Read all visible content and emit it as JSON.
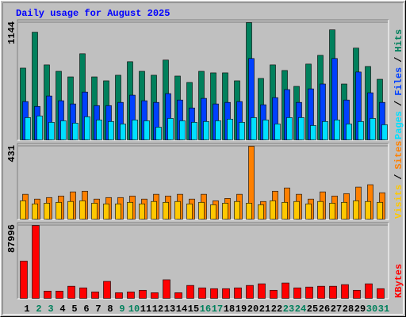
{
  "chart_data": [
    {
      "type": "bar",
      "title": "Daily usage for August 2025",
      "title_color": "#0000ff",
      "legend_separator": "/",
      "ylim": [
        0,
        1144
      ],
      "yticks": [
        1144
      ],
      "series": [
        {
          "name": "Hits",
          "color": "#00805c",
          "values": [
            703,
            1051,
            734,
            672,
            618,
            842,
            618,
            580,
            634,
            765,
            672,
            634,
            781,
            626,
            564,
            672,
            657,
            657,
            580,
            1144,
            603,
            734,
            680,
            526,
            742,
            827,
            1074,
            549,
            897,
            719,
            595
          ]
        },
        {
          "name": "Files",
          "color": "#0040ff",
          "values": [
            379,
            332,
            433,
            387,
            356,
            471,
            340,
            340,
            371,
            441,
            387,
            371,
            456,
            394,
            317,
            410,
            356,
            371,
            379,
            796,
            348,
            417,
            495,
            371,
            502,
            549,
            796,
            394,
            665,
            464,
            371
          ]
        },
        {
          "name": "Pages",
          "color": "#00e0ff",
          "values": [
            224,
            240,
            178,
            193,
            170,
            232,
            201,
            186,
            162,
            201,
            193,
            131,
            216,
            193,
            178,
            186,
            193,
            209,
            178,
            224,
            201,
            162,
            224,
            224,
            147,
            186,
            201,
            162,
            186,
            216,
            155
          ]
        }
      ]
    },
    {
      "type": "bar",
      "legend_separator": "/",
      "ylim": [
        0,
        431
      ],
      "yticks": [
        431
      ],
      "series": [
        {
          "name": "Sites",
          "color": "#ff8000",
          "values": [
            150,
            122,
            131,
            140,
            164,
            168,
            122,
            131,
            131,
            140,
            122,
            150,
            140,
            150,
            122,
            150,
            112,
            126,
            150,
            431,
            108,
            168,
            187,
            150,
            122,
            164,
            140,
            154,
            192,
            206,
            159
          ]
        },
        {
          "name": "Visits",
          "color": "#ffc800",
          "values": [
            112,
            94,
            98,
            103,
            108,
            112,
            98,
            94,
            94,
            103,
            94,
            108,
            103,
            108,
            94,
            103,
            89,
            98,
            108,
            98,
            89,
            112,
            103,
            108,
            94,
            108,
            98,
            103,
            112,
            108,
            103
          ]
        }
      ]
    },
    {
      "type": "bar",
      "ylim": [
        0,
        87996
      ],
      "yticks": [
        87996
      ],
      "categories": [
        "1",
        "2",
        "3",
        "4",
        "5",
        "6",
        "7",
        "8",
        "9",
        "10",
        "11",
        "12",
        "13",
        "14",
        "15",
        "16",
        "17",
        "18",
        "19",
        "20",
        "21",
        "22",
        "23",
        "24",
        "25",
        "26",
        "27",
        "28",
        "29",
        "30",
        "31"
      ],
      "category_colors": [
        "#000000",
        "#00805c",
        "#00805c",
        "#000000",
        "#000000",
        "#000000",
        "#000000",
        "#000000",
        "#00805c",
        "#00805c",
        "#000000",
        "#000000",
        "#000000",
        "#000000",
        "#000000",
        "#00805c",
        "#00805c",
        "#000000",
        "#000000",
        "#000000",
        "#000000",
        "#000000",
        "#00805c",
        "#00805c",
        "#000000",
        "#000000",
        "#000000",
        "#000000",
        "#000000",
        "#00805c",
        "#00805c"
      ],
      "series": [
        {
          "name": "KBytes",
          "color": "#ff0000",
          "values": [
            45449,
            87996,
            9670,
            9670,
            15472,
            13538,
            8703,
            21274,
            7736,
            8703,
            10637,
            7736,
            23208,
            7736,
            16439,
            13538,
            12571,
            12571,
            13538,
            16439,
            18373,
            10637,
            19340,
            13538,
            14505,
            15472,
            15472,
            17406,
            10637,
            18373,
            12571
          ]
        }
      ]
    }
  ]
}
